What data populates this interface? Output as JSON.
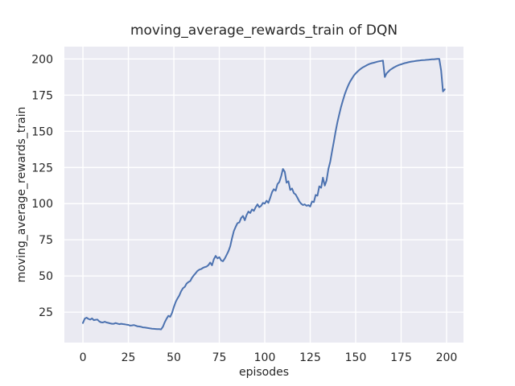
{
  "chart_data": {
    "type": "line",
    "title": "moving_average_rewards_train of DQN",
    "xlabel": "episodes",
    "ylabel": "moving_average_rewards_train",
    "style": "seaborn-darkgrid",
    "grid": true,
    "legend": "none",
    "x_ticks": [
      0,
      25,
      50,
      75,
      100,
      125,
      150,
      175,
      200
    ],
    "y_ticks": [
      25,
      50,
      75,
      100,
      125,
      150,
      175,
      200
    ],
    "xlim": [
      -10.2,
      209.3
    ],
    "ylim": [
      4.0,
      208.5
    ],
    "colors": {
      "figure_bg": "#ffffff",
      "axes_bg": "#eaeaf2",
      "grid": "#ffffff",
      "text": "#262626",
      "line": "#4c72b0"
    },
    "series": [
      {
        "name": "moving_average_rewards_train",
        "color": "#4c72b0",
        "x_start": 0,
        "x_step": 1,
        "values": [
          17.5,
          20.5,
          21.2,
          20.4,
          19.9,
          20.7,
          19.5,
          19.8,
          19.9,
          18.6,
          18.0,
          17.9,
          18.4,
          17.9,
          17.6,
          17.3,
          17.0,
          17.0,
          17.5,
          17.1,
          16.7,
          17.0,
          16.8,
          16.6,
          16.4,
          16.2,
          15.7,
          15.9,
          16.1,
          15.7,
          15.2,
          15.1,
          14.9,
          14.5,
          14.4,
          14.2,
          14.0,
          13.8,
          13.6,
          13.5,
          13.4,
          13.3,
          13.3,
          13.1,
          15.0,
          18.0,
          20.5,
          22.5,
          21.8,
          24.5,
          28.5,
          32.0,
          34.5,
          36.5,
          39.5,
          41.5,
          42.5,
          44.8,
          45.8,
          46.5,
          48.8,
          50.5,
          51.9,
          53.5,
          54.4,
          54.8,
          55.6,
          56.1,
          56.5,
          57.5,
          59.3,
          57.4,
          61.5,
          63.9,
          62.2,
          63.0,
          60.8,
          60.2,
          62.0,
          64.5,
          67.0,
          70.5,
          76.0,
          81.0,
          84.0,
          86.5,
          87.0,
          90.0,
          91.5,
          88.5,
          92.0,
          94.5,
          93.5,
          96.0,
          95.0,
          97.5,
          99.5,
          97.5,
          98.5,
          100.5,
          100.0,
          102.0,
          100.5,
          104.0,
          108.0,
          110.0,
          109.0,
          113.5,
          115.0,
          119.0,
          124.0,
          122.0,
          114.5,
          115.5,
          109.5,
          110.5,
          107.3,
          106.3,
          104.0,
          101.5,
          100.0,
          99.0,
          99.5,
          98.5,
          99.0,
          98.0,
          101.5,
          101.0,
          106.0,
          105.5,
          112.0,
          111.0,
          118.0,
          112.5,
          116.0,
          124.0,
          129.0,
          136.0,
          143.0,
          150.0,
          156.5,
          162.0,
          167.0,
          171.5,
          175.5,
          179.0,
          182.0,
          184.5,
          186.5,
          188.5,
          190.0,
          191.3,
          192.4,
          193.4,
          194.2,
          194.9,
          195.6,
          196.2,
          196.7,
          197.1,
          197.4,
          197.8,
          198.1,
          198.4,
          198.6,
          198.9,
          187.5,
          190.0,
          191.3,
          192.5,
          193.3,
          194.1,
          194.8,
          195.4,
          195.9,
          196.3,
          196.7,
          197.1,
          197.4,
          197.7,
          198.0,
          198.2,
          198.4,
          198.6,
          198.8,
          198.9,
          199.1,
          199.2,
          199.3,
          199.4,
          199.5,
          199.6,
          199.7,
          199.8,
          199.9,
          200.0,
          200.0,
          192.0,
          177.5,
          179.0
        ]
      }
    ]
  }
}
